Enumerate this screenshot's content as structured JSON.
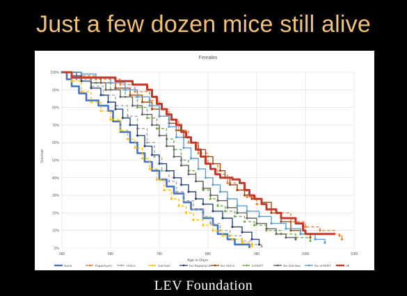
{
  "slide": {
    "title": "Just a few dozen mice still alive",
    "footer": "LEV Foundation"
  },
  "chart_data": {
    "type": "line",
    "title": "Females",
    "xlabel": "Age in Days",
    "ylabel": "Survival",
    "xlim": [
      580,
      1180
    ],
    "ylim": [
      0,
      100
    ],
    "xticks": [
      580,
      680,
      780,
      880,
      980,
      1080,
      1180
    ],
    "yticks": [
      0,
      10,
      20,
      30,
      40,
      50,
      60,
      70,
      80,
      90,
      100
    ],
    "ytick_suffix": "%",
    "grid": true,
    "legend_position": "bottom",
    "series": [
      {
        "name": "None",
        "color": "#4472c4",
        "dash": "",
        "width": 2.6,
        "marker": false,
        "points": [
          [
            580,
            100
          ],
          [
            590,
            96
          ],
          [
            600,
            92
          ],
          [
            615,
            88
          ],
          [
            630,
            84
          ],
          [
            655,
            81
          ],
          [
            675,
            78
          ],
          [
            685,
            72
          ],
          [
            700,
            66
          ],
          [
            720,
            60
          ],
          [
            735,
            54
          ],
          [
            750,
            49
          ],
          [
            765,
            44
          ],
          [
            780,
            39
          ],
          [
            795,
            35
          ],
          [
            810,
            31
          ],
          [
            830,
            26
          ],
          [
            845,
            22
          ],
          [
            870,
            17
          ],
          [
            890,
            13
          ],
          [
            900,
            8
          ],
          [
            920,
            5
          ],
          [
            935,
            2
          ],
          [
            955,
            2
          ],
          [
            965,
            0
          ]
        ]
      },
      {
        "name": "Rapamycin",
        "color": "#ed7d31",
        "dash": "4,3",
        "width": 1.4,
        "marker": true,
        "points": [
          [
            580,
            100
          ],
          [
            620,
            98
          ],
          [
            650,
            96
          ],
          [
            700,
            93
          ],
          [
            730,
            89
          ],
          [
            760,
            84
          ],
          [
            780,
            79
          ],
          [
            800,
            73
          ],
          [
            820,
            67
          ],
          [
            840,
            60
          ],
          [
            860,
            54
          ],
          [
            880,
            48
          ],
          [
            900,
            42
          ],
          [
            920,
            37
          ],
          [
            940,
            33
          ],
          [
            960,
            29
          ],
          [
            980,
            25
          ],
          [
            1000,
            22
          ],
          [
            1020,
            20
          ],
          [
            1050,
            15
          ],
          [
            1080,
            12
          ],
          [
            1110,
            10
          ],
          [
            1140,
            8
          ],
          [
            1150,
            7
          ],
          [
            1155,
            5
          ]
        ]
      },
      {
        "name": "HSCs",
        "color": "#a5a5a5",
        "dash": "4,3",
        "width": 1.4,
        "marker": true,
        "points": [
          [
            580,
            100
          ],
          [
            610,
            96
          ],
          [
            640,
            92
          ],
          [
            665,
            87
          ],
          [
            690,
            81
          ],
          [
            715,
            75
          ],
          [
            735,
            68
          ],
          [
            755,
            60
          ],
          [
            770,
            52
          ],
          [
            785,
            44
          ],
          [
            800,
            38
          ],
          [
            815,
            32
          ],
          [
            830,
            27
          ],
          [
            850,
            22
          ],
          [
            870,
            18
          ],
          [
            885,
            14
          ],
          [
            905,
            10
          ],
          [
            925,
            7
          ],
          [
            950,
            4
          ],
          [
            970,
            2
          ],
          [
            990,
            1
          ]
        ]
      },
      {
        "name": "Gal-Nav",
        "color": "#ffc000",
        "dash": "4,3",
        "width": 1.4,
        "marker": true,
        "points": [
          [
            580,
            100
          ],
          [
            600,
            95
          ],
          [
            620,
            89
          ],
          [
            640,
            83
          ],
          [
            660,
            78
          ],
          [
            680,
            73
          ],
          [
            700,
            67
          ],
          [
            715,
            62
          ],
          [
            730,
            57
          ],
          [
            745,
            51
          ],
          [
            760,
            45
          ],
          [
            775,
            39
          ],
          [
            790,
            33
          ],
          [
            805,
            28
          ],
          [
            820,
            24
          ],
          [
            835,
            20
          ],
          [
            850,
            16
          ],
          [
            870,
            13
          ],
          [
            890,
            10
          ],
          [
            910,
            7
          ],
          [
            930,
            5
          ],
          [
            950,
            3
          ],
          [
            970,
            1
          ]
        ]
      },
      {
        "name": "No Rapamycin",
        "color": "#264478",
        "dash": "",
        "width": 1.4,
        "marker": true,
        "points": [
          [
            580,
            100
          ],
          [
            600,
            98
          ],
          [
            620,
            95
          ],
          [
            640,
            91
          ],
          [
            660,
            87
          ],
          [
            675,
            83
          ],
          [
            690,
            79
          ],
          [
            705,
            74
          ],
          [
            720,
            70
          ],
          [
            735,
            64
          ],
          [
            750,
            58
          ],
          [
            765,
            53
          ],
          [
            780,
            48
          ],
          [
            795,
            44
          ],
          [
            810,
            40
          ],
          [
            825,
            36
          ],
          [
            840,
            32
          ],
          [
            855,
            28
          ],
          [
            870,
            25
          ],
          [
            890,
            21
          ],
          [
            910,
            17
          ],
          [
            930,
            12
          ],
          [
            950,
            9
          ],
          [
            970,
            5
          ],
          [
            985,
            2
          ]
        ]
      },
      {
        "name": "No HSCs",
        "color": "#9e480e",
        "dash": "",
        "width": 1.4,
        "marker": true,
        "points": [
          [
            580,
            100
          ],
          [
            620,
            97
          ],
          [
            660,
            94
          ],
          [
            690,
            91
          ],
          [
            720,
            87
          ],
          [
            745,
            83
          ],
          [
            765,
            79
          ],
          [
            780,
            75
          ],
          [
            800,
            71
          ],
          [
            815,
            67
          ],
          [
            830,
            63
          ],
          [
            845,
            60
          ],
          [
            860,
            56
          ],
          [
            875,
            52
          ],
          [
            890,
            48
          ],
          [
            905,
            44
          ],
          [
            915,
            40
          ],
          [
            925,
            36
          ],
          [
            940,
            33
          ],
          [
            955,
            30
          ],
          [
            970,
            28
          ],
          [
            990,
            26
          ],
          [
            1010,
            20
          ],
          [
            1030,
            15
          ],
          [
            1050,
            10
          ],
          [
            1070,
            8
          ],
          [
            1090,
            6
          ]
        ]
      },
      {
        "name": "mTERT",
        "color": "#70ad47",
        "dash": "4,3",
        "width": 1.4,
        "marker": true,
        "points": [
          [
            580,
            100
          ],
          [
            620,
            97
          ],
          [
            650,
            94
          ],
          [
            680,
            90
          ],
          [
            710,
            86
          ],
          [
            735,
            80
          ],
          [
            755,
            74
          ],
          [
            775,
            68
          ],
          [
            795,
            62
          ],
          [
            810,
            56
          ],
          [
            825,
            50
          ],
          [
            840,
            44
          ],
          [
            855,
            38
          ],
          [
            870,
            33
          ],
          [
            885,
            28
          ],
          [
            900,
            24
          ],
          [
            915,
            21
          ],
          [
            935,
            18
          ],
          [
            955,
            15
          ],
          [
            975,
            13
          ],
          [
            1000,
            10
          ],
          [
            1030,
            8
          ],
          [
            1060,
            6
          ],
          [
            1090,
            4
          ]
        ]
      },
      {
        "name": "No Gal-Nav",
        "color": "#636363",
        "dash": "",
        "width": 1.4,
        "marker": true,
        "points": [
          [
            580,
            100
          ],
          [
            610,
            97
          ],
          [
            640,
            94
          ],
          [
            670,
            90
          ],
          [
            700,
            86
          ],
          [
            725,
            81
          ],
          [
            745,
            76
          ],
          [
            765,
            70
          ],
          [
            780,
            64
          ],
          [
            795,
            58
          ],
          [
            810,
            52
          ],
          [
            825,
            47
          ],
          [
            840,
            42
          ],
          [
            855,
            38
          ],
          [
            870,
            34
          ],
          [
            885,
            30
          ],
          [
            900,
            27
          ],
          [
            920,
            23
          ],
          [
            940,
            20
          ],
          [
            960,
            17
          ],
          [
            980,
            14
          ],
          [
            1000,
            11
          ],
          [
            1020,
            8
          ],
          [
            1040,
            6
          ],
          [
            1060,
            5
          ]
        ]
      },
      {
        "name": "No mTERT",
        "color": "#5b9bd5",
        "dash": "",
        "width": 1.4,
        "marker": true,
        "points": [
          [
            580,
            100
          ],
          [
            620,
            99
          ],
          [
            650,
            97
          ],
          [
            680,
            94
          ],
          [
            710,
            90
          ],
          [
            735,
            86
          ],
          [
            760,
            81
          ],
          [
            780,
            75
          ],
          [
            800,
            69
          ],
          [
            815,
            63
          ],
          [
            830,
            57
          ],
          [
            845,
            51
          ],
          [
            860,
            45
          ],
          [
            875,
            40
          ],
          [
            890,
            36
          ],
          [
            905,
            32
          ],
          [
            920,
            28
          ],
          [
            940,
            24
          ],
          [
            960,
            21
          ],
          [
            985,
            18
          ],
          [
            1010,
            14
          ],
          [
            1040,
            11
          ],
          [
            1070,
            8
          ],
          [
            1100,
            5
          ],
          [
            1120,
            3
          ]
        ]
      },
      {
        "name": "All",
        "color": "#c0392b",
        "dash": "",
        "width": 3,
        "marker": false,
        "points": [
          [
            580,
            100
          ],
          [
            600,
            97
          ],
          [
            680,
            97
          ],
          [
            690,
            95
          ],
          [
            720,
            95
          ],
          [
            725,
            93
          ],
          [
            750,
            93
          ],
          [
            755,
            90
          ],
          [
            765,
            86
          ],
          [
            775,
            82
          ],
          [
            785,
            79
          ],
          [
            795,
            76
          ],
          [
            805,
            73
          ],
          [
            815,
            70
          ],
          [
            825,
            66
          ],
          [
            835,
            63
          ],
          [
            845,
            60
          ],
          [
            855,
            56
          ],
          [
            865,
            52
          ],
          [
            875,
            48
          ],
          [
            885,
            45
          ],
          [
            895,
            42
          ],
          [
            905,
            40
          ],
          [
            920,
            40
          ],
          [
            930,
            39
          ],
          [
            945,
            37
          ],
          [
            955,
            33
          ],
          [
            965,
            30
          ],
          [
            975,
            28
          ],
          [
            990,
            25
          ],
          [
            1000,
            22
          ],
          [
            1020,
            20
          ],
          [
            1030,
            17
          ],
          [
            1055,
            17
          ],
          [
            1060,
            14
          ],
          [
            1075,
            10
          ],
          [
            1080,
            8
          ],
          [
            1140,
            8
          ]
        ]
      }
    ]
  }
}
